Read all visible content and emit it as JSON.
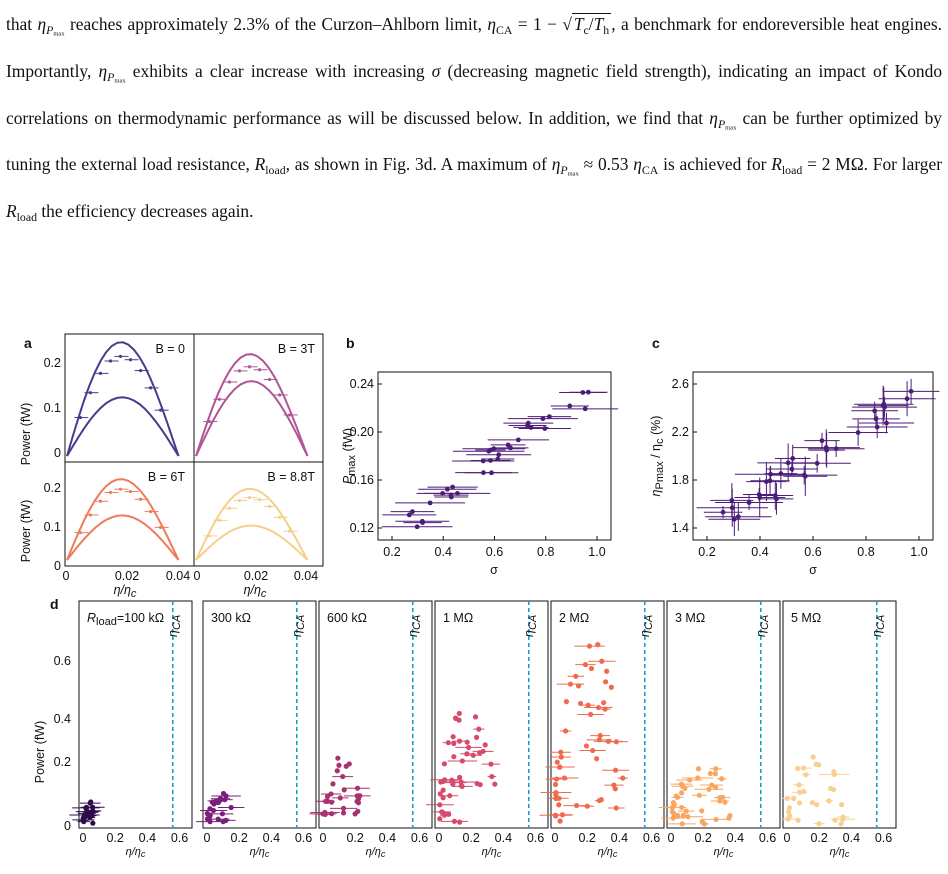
{
  "paragraph": {
    "s1": "that ",
    "s2": " reaches approximately 2.3% of the Curzon–Ahlborn limit, ",
    "s3": ", a benchmark for endoreversible heat engines. Importantly, ",
    "s4": " exhibits a clear increase with increasing ",
    "s5": " (decreasing magnetic field strength), indicating an impact of Kondo correlations on thermodynamic performance as will be discussed below. In addition, we find that ",
    "s6": " can be further optimized by tuning the external load resistance, ",
    "s7": ", as shown in Fig. 3d. A maximum of ",
    "s8": " is achieved for ",
    "s9": ". For larger ",
    "s10": " the efficiency decreases again.",
    "eta": "η",
    "pmax_sub": "max",
    "P": "P",
    "ca": "CA",
    "eq_pre": " = 1 − ",
    "Tc": "T",
    "c": "c",
    "Th": "T",
    "h": "h",
    "slash": "/",
    "sigma": "σ",
    "R": "R",
    "load": "load",
    "approx": " ≈ 0.53 ",
    "eq2": " = 2 MΩ"
  },
  "figure": {
    "panel_a": {
      "letter": "a",
      "ylabel": "Power (fW)",
      "xlabel": "η/η",
      "xlabel_sub": "c",
      "subpanels": [
        {
          "label": "B = 0",
          "color": "#4a3a8c"
        },
        {
          "label": "B = 3T",
          "color": "#b05596"
        },
        {
          "label": "B = 6T",
          "color": "#ef7a5c"
        },
        {
          "label": "B = 8.8T",
          "color": "#f6cf8c"
        }
      ],
      "yticks": [
        "0",
        "0.1",
        "0.2"
      ],
      "xticks": [
        "0",
        "0.02",
        "0.04"
      ]
    },
    "panel_b": {
      "letter": "b",
      "ylabel": "P",
      "ylabel_sub": "max",
      "ylabel_unit": " (fW)",
      "xlabel": "σ",
      "yticks": [
        "0.12",
        "0.16",
        "0.20",
        "0.24"
      ],
      "xticks": [
        "0.2",
        "0.4",
        "0.6",
        "0.8",
        "1.0"
      ],
      "color": "#4b1c78"
    },
    "panel_c": {
      "letter": "c",
      "ylabel": "η",
      "ylabel_sub": "Pmax",
      "ylabel_rest": " / η",
      "ylabel_rest_sub": "c",
      "ylabel_unit": " (%)",
      "xlabel": "σ",
      "yticks": [
        "1.4",
        "1.8",
        "2.2",
        "2.6"
      ],
      "xticks": [
        "0.2",
        "0.4",
        "0.6",
        "0.8",
        "1.0"
      ],
      "color": "#4b1c78"
    },
    "panel_d": {
      "letter": "d",
      "ylabel": "Power (fW)",
      "xlabel": "η/η",
      "xlabel_sub": "c",
      "eta_ca_label": "η",
      "eta_ca_sub": "CA",
      "yticks": [
        "0",
        "0.2",
        "0.4",
        "0.6"
      ],
      "xticks": [
        "0",
        "0.2",
        "0.4",
        "0.6"
      ],
      "ca_line_color": "#1f9bd1",
      "loads": [
        {
          "label": "R",
          "label_sub": "load",
          "label_rest": "=100 kΩ",
          "color": "#2e0b4d"
        },
        {
          "label": "300 kΩ",
          "color": "#7b1e7d"
        },
        {
          "label": "600 kΩ",
          "color": "#a8316f"
        },
        {
          "label": "1 MΩ",
          "color": "#d64a6a"
        },
        {
          "label": "2 MΩ",
          "color": "#f06a4e"
        },
        {
          "label": "3 MΩ",
          "color": "#f8a661"
        },
        {
          "label": "5 MΩ",
          "color": "#f9cf8e"
        }
      ]
    }
  }
}
